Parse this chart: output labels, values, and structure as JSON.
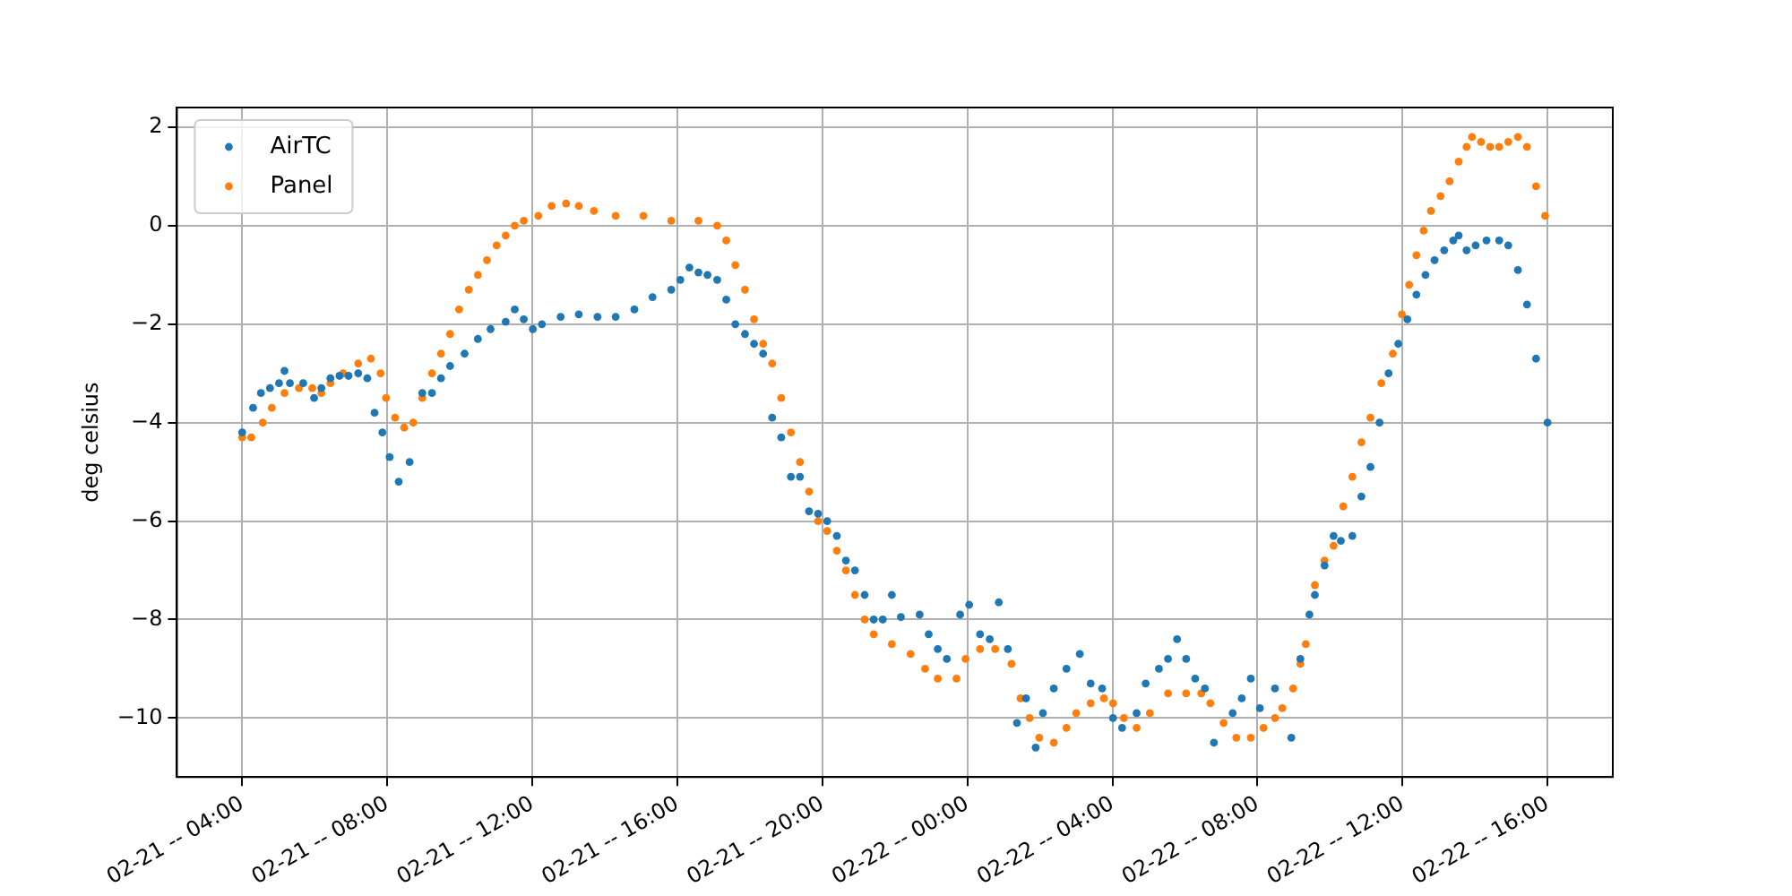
{
  "chart_data": {
    "type": "scatter",
    "ylabel": "deg celsius",
    "grid": true,
    "legend": "top left",
    "marker": "circle",
    "xlim": [
      "--02-21T02:12",
      "--02-22T17:48"
    ],
    "ylim": [
      -11.2,
      2.4
    ],
    "xticks": [
      {
        "value": "--02-21T04:00",
        "label": "02-21 -- 04:00"
      },
      {
        "value": "--02-21T08:00",
        "label": "02-21 -- 08:00"
      },
      {
        "value": "--02-21T12:00",
        "label": "02-21 -- 12:00"
      },
      {
        "value": "--02-21T16:00",
        "label": "02-21 -- 16:00"
      },
      {
        "value": "--02-21T20:00",
        "label": "02-21 -- 20:00"
      },
      {
        "value": "--02-22T00:00",
        "label": "02-22 -- 00:00"
      },
      {
        "value": "--02-22T04:00",
        "label": "02-22 -- 04:00"
      },
      {
        "value": "--02-22T08:00",
        "label": "02-22 -- 08:00"
      },
      {
        "value": "--02-22T12:00",
        "label": "02-22 -- 12:00"
      },
      {
        "value": "--02-22T16:00",
        "label": "02-22 -- 16:00"
      }
    ],
    "yticks": [
      -10,
      -8,
      -6,
      -4,
      -2,
      0,
      2
    ],
    "series": [
      {
        "name": "AirTC",
        "color": "#1f77b4",
        "x": [
          "--02-21T04:00",
          "--02-21T04:18",
          "--02-21T04:31",
          "--02-21T04:46",
          "--02-21T05:01",
          "--02-21T05:10",
          "--02-21T05:19",
          "--02-21T05:41",
          "--02-21T05:59",
          "--02-21T06:11",
          "--02-21T06:26",
          "--02-21T06:41",
          "--02-21T06:56",
          "--02-21T07:12",
          "--02-21T07:27",
          "--02-21T07:39",
          "--02-21T07:52",
          "--02-21T08:04",
          "--02-21T08:19",
          "--02-21T08:37",
          "--02-21T08:58",
          "--02-21T09:14",
          "--02-21T09:29",
          "--02-21T09:44",
          "--02-21T10:08",
          "--02-21T10:30",
          "--02-21T10:51",
          "--02-21T11:16",
          "--02-21T11:31",
          "--02-21T11:46",
          "--02-21T12:01",
          "--02-21T12:16",
          "--02-21T12:47",
          "--02-21T13:17",
          "--02-21T13:48",
          "--02-21T14:18",
          "--02-21T14:49",
          "--02-21T15:19",
          "--02-21T15:50",
          "--02-21T16:05",
          "--02-21T16:20",
          "--02-21T16:35",
          "--02-21T16:50",
          "--02-21T17:06",
          "--02-21T17:21",
          "--02-21T17:36",
          "--02-21T17:52",
          "--02-21T18:07",
          "--02-21T18:22",
          "--02-21T18:37",
          "--02-21T18:52",
          "--02-21T19:08",
          "--02-21T19:23",
          "--02-21T19:38",
          "--02-21T19:53",
          "--02-21T20:08",
          "--02-21T20:24",
          "--02-21T20:39",
          "--02-21T20:54",
          "--02-21T21:10",
          "--02-21T21:25",
          "--02-21T21:40",
          "--02-21T21:55",
          "--02-21T22:10",
          "--02-21T22:41",
          "--02-21T22:56",
          "--02-21T23:11",
          "--02-21T23:26",
          "--02-21T23:48",
          "--02-22T00:03",
          "--02-22T00:21",
          "--02-22T00:37",
          "--02-22T00:52",
          "--02-22T01:07",
          "--02-22T01:22",
          "--02-22T01:37",
          "--02-22T01:53",
          "--02-22T02:05",
          "--02-22T02:23",
          "--02-22T02:44",
          "--02-22T03:06",
          "--02-22T03:24",
          "--02-22T03:43",
          "--02-22T04:01",
          "--02-22T04:16",
          "--02-22T04:40",
          "--02-22T04:55",
          "--02-22T05:17",
          "--02-22T05:32",
          "--02-22T05:47",
          "--02-22T06:02",
          "--02-22T06:17",
          "--02-22T06:33",
          "--02-22T06:48",
          "--02-22T07:19",
          "--02-22T07:34",
          "--02-22T07:49",
          "--02-22T08:04",
          "--02-22T08:29",
          "--02-22T08:56",
          "--02-22T09:11",
          "--02-22T09:26",
          "--02-22T09:35",
          "--02-22T09:51",
          "--02-22T10:06",
          "--02-22T10:18",
          "--02-22T10:37",
          "--02-22T10:52",
          "--02-22T11:07",
          "--02-22T11:22",
          "--02-22T11:37",
          "--02-22T11:53",
          "--02-22T12:08",
          "--02-22T12:23",
          "--02-22T12:38",
          "--02-22T12:53",
          "--02-22T13:09",
          "--02-22T13:24",
          "--02-22T13:33",
          "--02-22T13:46",
          "--02-22T14:01",
          "--02-22T14:19",
          "--02-22T14:40",
          "--02-22T14:55",
          "--02-22T15:11",
          "--02-22T15:26",
          "--02-22T15:41",
          "--02-22T16:00"
        ],
        "values": [
          -4.2,
          -3.7,
          -3.4,
          -3.3,
          -3.2,
          -2.95,
          -3.2,
          -3.2,
          -3.5,
          -3.3,
          -3.1,
          -3.05,
          -3.05,
          -3.0,
          -3.1,
          -3.8,
          -4.2,
          -4.7,
          -5.2,
          -4.8,
          -3.4,
          -3.4,
          -3.1,
          -2.85,
          -2.6,
          -2.3,
          -2.1,
          -1.95,
          -1.7,
          -1.9,
          -2.1,
          -2.0,
          -1.85,
          -1.8,
          -1.85,
          -1.85,
          -1.7,
          -1.45,
          -1.3,
          -1.1,
          -0.85,
          -0.95,
          -1.0,
          -1.1,
          -1.5,
          -2.0,
          -2.2,
          -2.4,
          -2.6,
          -3.9,
          -4.3,
          -5.1,
          -5.1,
          -5.8,
          -5.85,
          -6.0,
          -6.3,
          -6.8,
          -7.0,
          -7.5,
          -8.0,
          -8.0,
          -7.5,
          -7.95,
          -7.9,
          -8.3,
          -8.6,
          -8.8,
          -7.9,
          -7.7,
          -8.3,
          -8.4,
          -7.65,
          -8.6,
          -10.1,
          -9.6,
          -10.6,
          -9.9,
          -9.4,
          -9.0,
          -8.7,
          -9.3,
          -9.4,
          -10.0,
          -10.2,
          -9.9,
          -9.3,
          -9.0,
          -8.8,
          -8.4,
          -8.8,
          -9.2,
          -9.4,
          -10.5,
          -9.9,
          -9.6,
          -9.2,
          -9.8,
          -9.4,
          -10.4,
          -8.8,
          -7.9,
          -7.5,
          -6.9,
          -6.3,
          -6.4,
          -6.3,
          -5.5,
          -4.9,
          -4.0,
          -3.0,
          -2.4,
          -1.9,
          -1.4,
          -1.0,
          -0.7,
          -0.5,
          -0.3,
          -0.2,
          -0.5,
          -0.4,
          -0.3,
          -0.3,
          -0.4,
          -0.9,
          -1.6,
          -2.7,
          -4.0
        ]
      },
      {
        "name": "Panel",
        "color": "#ff7f0e",
        "x": [
          "--02-21T04:00",
          "--02-21T04:15",
          "--02-21T04:34",
          "--02-21T04:49",
          "--02-21T05:10",
          "--02-21T05:34",
          "--02-21T05:56",
          "--02-21T06:11",
          "--02-21T06:26",
          "--02-21T06:47",
          "--02-21T07:12",
          "--02-21T07:33",
          "--02-21T07:49",
          "--02-21T07:58",
          "--02-21T08:13",
          "--02-21T08:28",
          "--02-21T08:43",
          "--02-21T08:58",
          "--02-21T09:14",
          "--02-21T09:29",
          "--02-21T09:44",
          "--02-21T09:59",
          "--02-21T10:15",
          "--02-21T10:30",
          "--02-21T10:45",
          "--02-21T11:01",
          "--02-21T11:16",
          "--02-21T11:31",
          "--02-21T11:46",
          "--02-21T12:10",
          "--02-21T12:32",
          "--02-21T12:56",
          "--02-21T13:17",
          "--02-21T13:42",
          "--02-21T14:18",
          "--02-21T15:04",
          "--02-21T15:50",
          "--02-21T16:35",
          "--02-21T17:06",
          "--02-21T17:21",
          "--02-21T17:36",
          "--02-21T17:52",
          "--02-21T18:07",
          "--02-21T18:22",
          "--02-21T18:37",
          "--02-21T18:52",
          "--02-21T19:08",
          "--02-21T19:23",
          "--02-21T19:38",
          "--02-21T19:53",
          "--02-21T20:08",
          "--02-21T20:24",
          "--02-21T20:39",
          "--02-21T20:54",
          "--02-21T21:10",
          "--02-21T21:25",
          "--02-21T21:55",
          "--02-21T22:26",
          "--02-21T22:50",
          "--02-21T23:11",
          "--02-21T23:42",
          "--02-21T23:57",
          "--02-22T00:21",
          "--02-22T00:46",
          "--02-22T01:13",
          "--02-22T01:28",
          "--02-22T01:43",
          "--02-22T01:59",
          "--02-22T02:23",
          "--02-22T02:44",
          "--02-22T03:00",
          "--02-22T03:24",
          "--02-22T03:46",
          "--02-22T04:01",
          "--02-22T04:19",
          "--02-22T04:40",
          "--02-22T05:02",
          "--02-22T05:32",
          "--02-22T06:02",
          "--02-22T06:27",
          "--02-22T06:42",
          "--02-22T07:04",
          "--02-22T07:25",
          "--02-22T07:49",
          "--02-22T08:10",
          "--02-22T08:29",
          "--02-22T08:41",
          "--02-22T08:59",
          "--02-22T09:11",
          "--02-22T09:20",
          "--02-22T09:35",
          "--02-22T09:51",
          "--02-22T10:06",
          "--02-22T10:22",
          "--02-22T10:37",
          "--02-22T10:52",
          "--02-22T11:07",
          "--02-22T11:25",
          "--02-22T11:44",
          "--02-22T11:59",
          "--02-22T12:11",
          "--02-22T12:23",
          "--02-22T12:35",
          "--02-22T12:47",
          "--02-22T13:03",
          "--02-22T13:18",
          "--02-22T13:33",
          "--02-22T13:46",
          "--02-22T13:55",
          "--02-22T14:10",
          "--02-22T14:25",
          "--02-22T14:40",
          "--02-22T14:55",
          "--02-22T15:11",
          "--02-22T15:26",
          "--02-22T15:41",
          "--02-22T15:56"
        ],
        "values": [
          -4.3,
          -4.3,
          -4.0,
          -3.7,
          -3.4,
          -3.3,
          -3.3,
          -3.4,
          -3.2,
          -3.0,
          -2.8,
          -2.7,
          -3.0,
          -3.5,
          -3.9,
          -4.1,
          -4.0,
          -3.5,
          -3.0,
          -2.6,
          -2.2,
          -1.7,
          -1.3,
          -1.0,
          -0.7,
          -0.4,
          -0.2,
          0.0,
          0.1,
          0.2,
          0.4,
          0.45,
          0.4,
          0.3,
          0.2,
          0.2,
          0.1,
          0.1,
          0.0,
          -0.3,
          -0.8,
          -1.3,
          -1.9,
          -2.4,
          -2.8,
          -3.5,
          -4.2,
          -4.8,
          -5.4,
          -6.0,
          -6.2,
          -6.6,
          -7.0,
          -7.5,
          -8.0,
          -8.3,
          -8.5,
          -8.7,
          -9.0,
          -9.2,
          -9.2,
          -8.8,
          -8.6,
          -8.6,
          -8.9,
          -9.6,
          -10.0,
          -10.4,
          -10.5,
          -10.2,
          -9.9,
          -9.7,
          -9.6,
          -9.7,
          -10.0,
          -10.2,
          -9.9,
          -9.5,
          -9.5,
          -9.5,
          -9.7,
          -10.1,
          -10.4,
          -10.4,
          -10.2,
          -10.0,
          -9.8,
          -9.4,
          -8.9,
          -8.5,
          -7.3,
          -6.8,
          -6.5,
          -5.7,
          -5.1,
          -4.4,
          -3.9,
          -3.2,
          -2.6,
          -1.8,
          -1.2,
          -0.6,
          -0.1,
          0.3,
          0.6,
          0.9,
          1.3,
          1.6,
          1.8,
          1.7,
          1.6,
          1.6,
          1.7,
          1.8,
          1.6,
          0.8,
          0.2
        ]
      }
    ]
  }
}
